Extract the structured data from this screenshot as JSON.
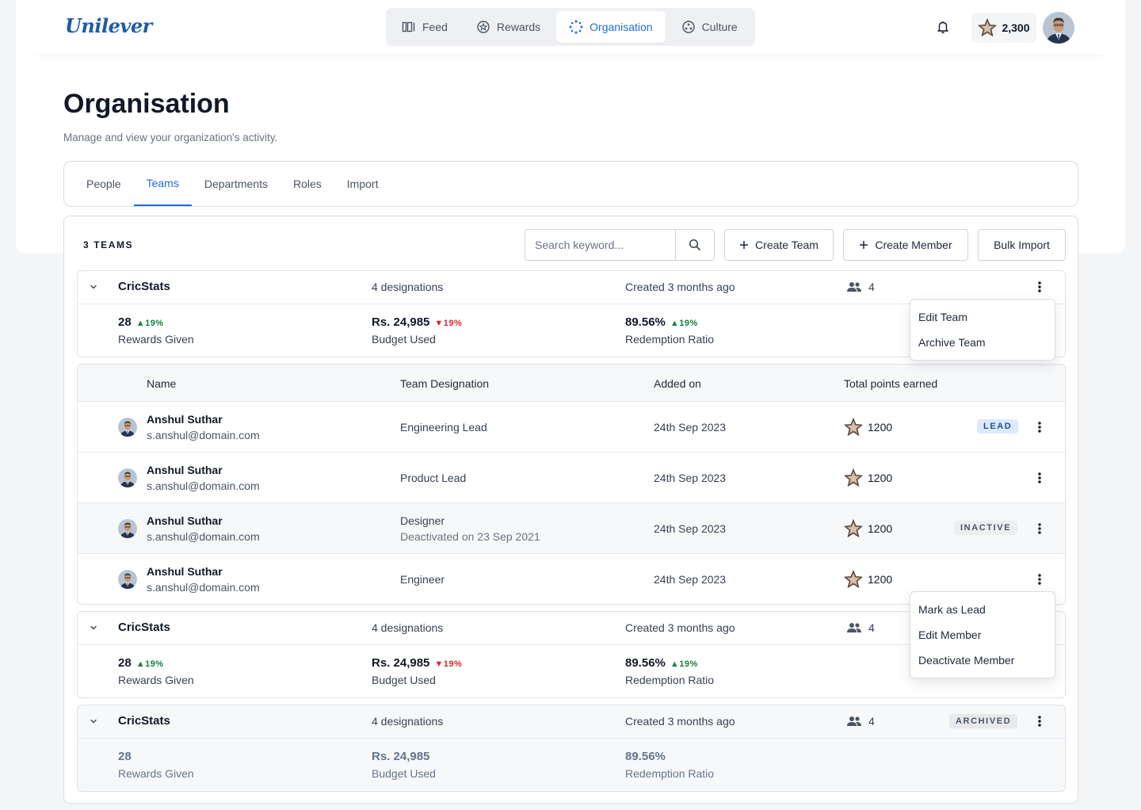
{
  "brand": {
    "logo_text": "Unilever"
  },
  "nav": {
    "items": [
      {
        "label": "Feed",
        "icon": "feed-icon"
      },
      {
        "label": "Rewards",
        "icon": "rewards-icon"
      },
      {
        "label": "Organisation",
        "icon": "organisation-icon",
        "active": true
      },
      {
        "label": "Culture",
        "icon": "culture-icon"
      }
    ]
  },
  "header": {
    "points": "2,300"
  },
  "page": {
    "title": "Organisation",
    "subtitle": "Manage and view your organization's activity."
  },
  "tabs": [
    "People",
    "Teams",
    "Departments",
    "Roles",
    "Import"
  ],
  "active_tab": "Teams",
  "toolbar": {
    "count_label": "3 TEAMS",
    "search_placeholder": "Search keyword...",
    "create_team": "Create Team",
    "create_member": "Create Member",
    "bulk_import": "Bulk Import"
  },
  "teams": [
    {
      "name": "CricStats",
      "designations": "4 designations",
      "created": "Created 3 months ago",
      "members": "4",
      "rewards": {
        "value": "28",
        "delta": "▲19%",
        "label": "Rewards Given"
      },
      "budget": {
        "value": "Rs. 24,985",
        "delta": "▼19%",
        "label": "Budget Used"
      },
      "redemption": {
        "value": "89.56%",
        "delta": "▲19%",
        "label": "Redemption Ratio"
      }
    },
    {
      "name": "CricStats",
      "designations": "4 designations",
      "created": "Created 3 months ago",
      "members": "4",
      "rewards": {
        "value": "28",
        "delta": "▲19%",
        "label": "Rewards Given"
      },
      "budget": {
        "value": "Rs. 24,985",
        "delta": "▼19%",
        "label": "Budget Used"
      },
      "redemption": {
        "value": "89.56%",
        "delta": "▲19%",
        "label": "Redemption Ratio"
      }
    },
    {
      "name": "CricStats",
      "designations": "4 designations",
      "created": "Created 3 months ago",
      "members": "4",
      "badge": "ARCHIVED",
      "rewards": {
        "value": "28",
        "label": "Rewards Given"
      },
      "budget": {
        "value": "Rs. 24,985",
        "label": "Budget Used"
      },
      "redemption": {
        "value": "89.56%",
        "label": "Redemption Ratio"
      }
    }
  ],
  "member_table": {
    "headers": [
      "Name",
      "Team Designation",
      "Added on",
      "Total points earned"
    ],
    "rows": [
      {
        "name": "Anshul Suthar",
        "email": "s.anshul@domain.com",
        "designation": "Engineering Lead",
        "added": "24th Sep 2023",
        "points": "1200",
        "badge": "LEAD"
      },
      {
        "name": "Anshul Suthar",
        "email": "s.anshul@domain.com",
        "designation": "Product Lead",
        "added": "24th Sep 2023",
        "points": "1200"
      },
      {
        "name": "Anshul Suthar",
        "email": "s.anshul@domain.com",
        "designation": "Designer",
        "note": "Deactivated on 23 Sep 2021",
        "added": "24th Sep 2023",
        "points": "1200",
        "badge": "INACTIVE"
      },
      {
        "name": "Anshul Suthar",
        "email": "s.anshul@domain.com",
        "designation": "Engineer",
        "added": "24th Sep 2023",
        "points": "1200"
      }
    ]
  },
  "team_menu": [
    "Edit Team",
    "Archive Team"
  ],
  "member_menu": [
    "Mark as Lead",
    "Edit Member",
    "Deactivate Member"
  ],
  "colors": {
    "accent": "#1f6fd4",
    "up": "#15803d",
    "down": "#dc2626",
    "brand": "#1f5ba8"
  }
}
